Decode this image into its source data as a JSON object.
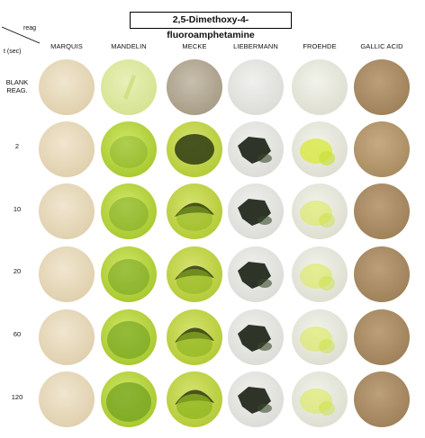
{
  "title": "2,5-Dimethoxy-4-fluoroamphetamine",
  "corner": {
    "top_label": "reag",
    "bottom_label": "t (sec)"
  },
  "columns": [
    "MARQUIS",
    "MANDELIN",
    "MECKE",
    "LIEBERMANN",
    "FROEHDE",
    "GALLIC ACID"
  ],
  "rows": [
    {
      "label_line1": "BLANK",
      "label_line2": "REAG."
    },
    {
      "label_line1": "2",
      "label_line2": ""
    },
    {
      "label_line1": "10",
      "label_line2": ""
    },
    {
      "label_line1": "20",
      "label_line2": ""
    },
    {
      "label_line1": "60",
      "label_line2": ""
    },
    {
      "label_line1": "120",
      "label_line2": ""
    }
  ],
  "well_colors": {
    "marquis": "#e9dcc0",
    "mandelin_blank": "#dde9a4",
    "mandelin": "#b9d64a",
    "mandelin_dark": "#6d9e1e",
    "mecke_blank": "#b8ae99",
    "mecke": "#bfd245",
    "mecke_dark": "#2f3b12",
    "liebermann_bg": "#e6e6e2",
    "liebermann_dark": "#1e2418",
    "froehde_bg": "#e9eadf",
    "froehde_yellow": "#d9e94a",
    "gallic": "#b0946a"
  }
}
